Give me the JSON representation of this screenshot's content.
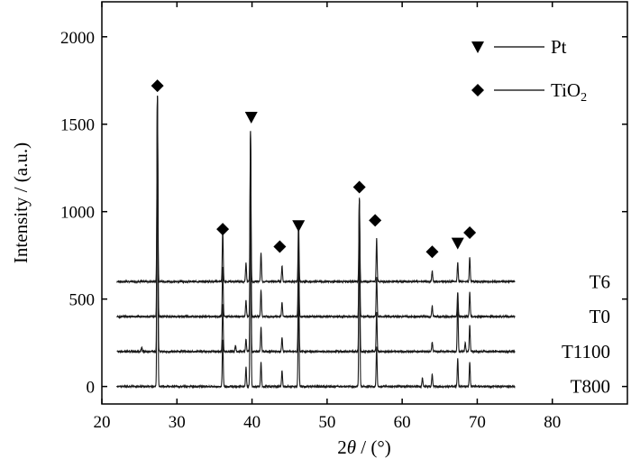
{
  "chart_data": {
    "type": "line",
    "xlabel_prefix": "2",
    "xlabel_symbol": "θ",
    "xlabel_suffix": " / (°)",
    "ylabel": "Intensity / (a.u.)",
    "xlim": [
      20,
      90
    ],
    "ylim": [
      -100,
      2200
    ],
    "xticks": [
      20,
      30,
      40,
      50,
      60,
      70,
      80
    ],
    "yticks": [
      0,
      500,
      1000,
      1500,
      2000
    ],
    "x_range": [
      22,
      75
    ],
    "line_color": "#1a1a1a",
    "legend": [
      {
        "marker": "triangle-down",
        "label_main": "Pt",
        "label_sub": ""
      },
      {
        "marker": "diamond",
        "label_main": "TiO",
        "label_sub": "2"
      }
    ],
    "series": [
      {
        "name": "T6",
        "baseline": 600,
        "peaks": [
          [
            27.4,
            1060
          ],
          [
            36.1,
            295
          ],
          [
            39.2,
            105
          ],
          [
            39.8,
            860
          ],
          [
            41.2,
            165
          ],
          [
            44.0,
            90
          ],
          [
            46.2,
            350
          ],
          [
            54.3,
            460
          ],
          [
            56.6,
            245
          ],
          [
            64.0,
            60
          ],
          [
            67.4,
            110
          ],
          [
            69.0,
            140
          ]
        ]
      },
      {
        "name": "T0",
        "baseline": 400,
        "peaks": [
          [
            27.4,
            1260
          ],
          [
            36.1,
            280
          ],
          [
            39.2,
            90
          ],
          [
            39.8,
            1060
          ],
          [
            41.2,
            150
          ],
          [
            44.0,
            80
          ],
          [
            46.2,
            420
          ],
          [
            54.3,
            670
          ],
          [
            56.6,
            230
          ],
          [
            64.0,
            60
          ],
          [
            67.4,
            140
          ],
          [
            69.0,
            140
          ]
        ]
      },
      {
        "name": "T1100",
        "baseline": 200,
        "peaks": [
          [
            25.3,
            25
          ],
          [
            27.4,
            1460
          ],
          [
            36.1,
            270
          ],
          [
            37.8,
            35
          ],
          [
            39.2,
            70
          ],
          [
            39.8,
            1210
          ],
          [
            41.2,
            140
          ],
          [
            44.0,
            80
          ],
          [
            46.2,
            470
          ],
          [
            54.3,
            880
          ],
          [
            56.6,
            230
          ],
          [
            64.0,
            55
          ],
          [
            67.4,
            310
          ],
          [
            68.4,
            50
          ],
          [
            69.0,
            150
          ]
        ]
      },
      {
        "name": "T800",
        "baseline": 0,
        "peaks": [
          [
            27.4,
            1650
          ],
          [
            36.1,
            270
          ],
          [
            39.2,
            110
          ],
          [
            39.8,
            1420
          ],
          [
            41.2,
            140
          ],
          [
            44.0,
            90
          ],
          [
            46.2,
            560
          ],
          [
            54.3,
            1060
          ],
          [
            56.6,
            230
          ],
          [
            62.7,
            50
          ],
          [
            64.0,
            70
          ],
          [
            67.4,
            160
          ],
          [
            69.0,
            140
          ]
        ]
      }
    ],
    "annotations": [
      {
        "marker": "diamond",
        "x": 27.4,
        "y": 1720
      },
      {
        "marker": "diamond",
        "x": 36.1,
        "y": 900
      },
      {
        "marker": "triangle-down",
        "x": 39.9,
        "y": 1540
      },
      {
        "marker": "diamond",
        "x": 43.7,
        "y": 800
      },
      {
        "marker": "triangle-down",
        "x": 46.2,
        "y": 920
      },
      {
        "marker": "diamond",
        "x": 54.3,
        "y": 1140
      },
      {
        "marker": "diamond",
        "x": 56.4,
        "y": 950
      },
      {
        "marker": "diamond",
        "x": 64.0,
        "y": 770
      },
      {
        "marker": "triangle-down",
        "x": 67.4,
        "y": 820
      },
      {
        "marker": "diamond",
        "x": 69.0,
        "y": 880
      }
    ]
  }
}
